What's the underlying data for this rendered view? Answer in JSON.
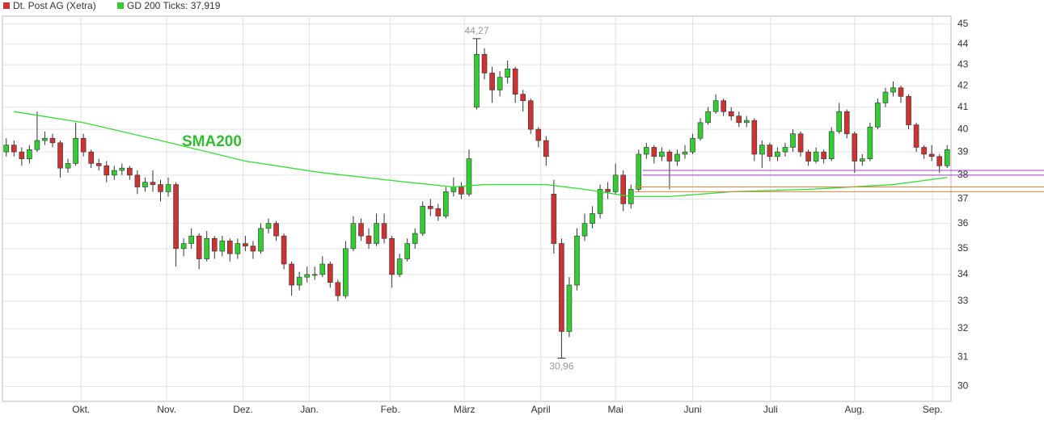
{
  "chart_data": {
    "type": "candlestick",
    "legend": [
      {
        "label": "Dt. Post AG (Xetra)",
        "color": "#cc3333"
      },
      {
        "label": "GD 200 Ticks: 37,919",
        "color": "#33cc33"
      }
    ],
    "annotation": "SMA200",
    "log_scale": true,
    "grid": true,
    "ylim": [
      29.5,
      45.4
    ],
    "yticks": [
      30,
      31,
      32,
      33,
      34,
      35,
      36,
      37,
      38,
      39,
      40,
      41,
      42,
      43,
      44,
      45
    ],
    "xlim": [
      0,
      123
    ],
    "xticks": [
      {
        "value": 10.2,
        "label": "Okt."
      },
      {
        "value": 21.3,
        "label": "Nov."
      },
      {
        "value": 31.2,
        "label": "Dez."
      },
      {
        "value": 39.8,
        "label": "Jan."
      },
      {
        "value": 50.3,
        "label": "Feb."
      },
      {
        "value": 59.9,
        "label": "März"
      },
      {
        "value": 69.8,
        "label": "April"
      },
      {
        "value": 79.5,
        "label": "Mai"
      },
      {
        "value": 89.5,
        "label": "Juni"
      },
      {
        "value": 99.6,
        "label": "Juli"
      },
      {
        "value": 110.5,
        "label": "Aug."
      },
      {
        "value": 120.6,
        "label": "Sep."
      }
    ],
    "up_color": "#33cc33",
    "down_color": "#cc3333",
    "ohlc": [
      [
        39.0,
        39.6,
        38.8,
        39.3
      ],
      [
        39.3,
        39.5,
        38.8,
        39.0
      ],
      [
        39.0,
        39.2,
        38.4,
        38.7
      ],
      [
        38.7,
        39.3,
        38.5,
        39.1
      ],
      [
        39.1,
        40.8,
        39.0,
        39.5
      ],
      [
        39.5,
        39.9,
        39.3,
        39.6
      ],
      [
        39.6,
        39.8,
        39.2,
        39.4
      ],
      [
        39.4,
        39.5,
        37.9,
        38.3
      ],
      [
        38.3,
        38.7,
        38.1,
        38.5
      ],
      [
        38.5,
        40.3,
        38.4,
        39.6
      ],
      [
        39.6,
        39.8,
        38.8,
        39.0
      ],
      [
        39.0,
        39.1,
        38.3,
        38.5
      ],
      [
        38.5,
        38.7,
        38.2,
        38.4
      ],
      [
        38.4,
        38.6,
        37.7,
        38.0
      ],
      [
        38.0,
        38.4,
        37.8,
        38.2
      ],
      [
        38.2,
        38.5,
        38.0,
        38.3
      ],
      [
        38.3,
        38.4,
        37.8,
        38.0
      ],
      [
        38.0,
        38.2,
        37.2,
        37.5
      ],
      [
        37.5,
        37.9,
        37.3,
        37.7
      ],
      [
        37.7,
        38.2,
        37.3,
        37.6
      ],
      [
        37.6,
        37.8,
        36.9,
        37.3
      ],
      [
        37.3,
        37.9,
        37.1,
        37.6
      ],
      [
        37.6,
        37.7,
        34.3,
        35.0
      ],
      [
        35.0,
        35.4,
        34.7,
        35.2
      ],
      [
        35.2,
        35.8,
        35.0,
        35.5
      ],
      [
        35.5,
        35.6,
        34.2,
        34.6
      ],
      [
        34.6,
        35.7,
        34.5,
        35.4
      ],
      [
        35.4,
        35.5,
        34.6,
        34.9
      ],
      [
        34.9,
        35.5,
        34.7,
        35.3
      ],
      [
        35.3,
        35.4,
        34.5,
        34.8
      ],
      [
        34.8,
        35.4,
        34.6,
        35.2
      ],
      [
        35.2,
        35.5,
        34.9,
        35.1
      ],
      [
        35.1,
        35.3,
        34.6,
        34.9
      ],
      [
        34.9,
        36.0,
        34.8,
        35.8
      ],
      [
        35.8,
        36.2,
        35.6,
        36.0
      ],
      [
        36.0,
        36.1,
        35.3,
        35.5
      ],
      [
        35.5,
        35.6,
        34.2,
        34.4
      ],
      [
        34.4,
        34.5,
        33.2,
        33.6
      ],
      [
        33.6,
        34.1,
        33.4,
        33.9
      ],
      [
        33.9,
        34.3,
        33.7,
        34.0
      ],
      [
        34.0,
        34.3,
        33.8,
        34.0
      ],
      [
        34.0,
        34.7,
        33.9,
        34.4
      ],
      [
        34.4,
        34.5,
        33.5,
        33.7
      ],
      [
        33.7,
        33.8,
        33.0,
        33.2
      ],
      [
        33.2,
        35.3,
        33.1,
        35.0
      ],
      [
        35.0,
        36.3,
        34.9,
        36.0
      ],
      [
        36.0,
        36.2,
        35.3,
        35.5
      ],
      [
        35.5,
        35.8,
        35.0,
        35.2
      ],
      [
        35.2,
        36.4,
        35.1,
        36.0
      ],
      [
        36.0,
        36.4,
        35.2,
        35.4
      ],
      [
        35.4,
        35.5,
        33.5,
        34.0
      ],
      [
        34.0,
        34.8,
        33.9,
        34.6
      ],
      [
        34.6,
        35.4,
        34.5,
        35.2
      ],
      [
        35.2,
        35.8,
        35.0,
        35.6
      ],
      [
        35.6,
        36.9,
        35.5,
        36.7
      ],
      [
        36.7,
        37.0,
        36.3,
        36.6
      ],
      [
        36.6,
        36.8,
        36.1,
        36.3
      ],
      [
        36.3,
        37.5,
        36.2,
        37.3
      ],
      [
        37.3,
        37.9,
        37.1,
        37.5
      ],
      [
        37.5,
        37.7,
        37.0,
        37.2
      ],
      [
        37.2,
        39.1,
        37.1,
        38.7
      ],
      [
        41.0,
        44.27,
        40.9,
        43.5
      ],
      [
        43.5,
        43.8,
        42.3,
        42.6
      ],
      [
        42.6,
        42.9,
        41.2,
        41.8
      ],
      [
        41.8,
        42.7,
        41.5,
        42.4
      ],
      [
        42.4,
        43.2,
        42.1,
        42.8
      ],
      [
        42.8,
        42.9,
        41.2,
        41.6
      ],
      [
        41.6,
        41.8,
        40.8,
        41.3
      ],
      [
        41.3,
        41.4,
        39.8,
        40.0
      ],
      [
        40.0,
        40.1,
        39.2,
        39.5
      ],
      [
        39.5,
        39.7,
        38.4,
        38.8
      ],
      [
        37.2,
        37.8,
        34.8,
        35.2
      ],
      [
        35.2,
        35.4,
        30.96,
        31.9
      ],
      [
        31.9,
        33.9,
        31.7,
        33.6
      ],
      [
        33.6,
        35.8,
        33.4,
        35.5
      ],
      [
        35.5,
        36.4,
        35.3,
        36.0
      ],
      [
        36.0,
        36.7,
        35.8,
        36.4
      ],
      [
        36.4,
        37.6,
        36.2,
        37.4
      ],
      [
        37.4,
        37.7,
        37.0,
        37.3
      ],
      [
        37.3,
        38.5,
        37.2,
        38.0
      ],
      [
        38.0,
        38.2,
        36.5,
        36.8
      ],
      [
        36.8,
        37.6,
        36.6,
        37.4
      ],
      [
        37.4,
        39.1,
        37.3,
        38.9
      ],
      [
        38.9,
        39.4,
        38.7,
        39.2
      ],
      [
        39.2,
        39.3,
        38.5,
        38.8
      ],
      [
        38.8,
        39.2,
        38.6,
        39.0
      ],
      [
        39.0,
        39.1,
        37.4,
        38.6
      ],
      [
        38.6,
        39.1,
        38.4,
        38.9
      ],
      [
        38.9,
        39.3,
        38.7,
        39.0
      ],
      [
        39.0,
        39.8,
        38.9,
        39.6
      ],
      [
        39.6,
        40.5,
        39.5,
        40.3
      ],
      [
        40.3,
        41.0,
        40.2,
        40.8
      ],
      [
        40.8,
        41.6,
        40.7,
        41.3
      ],
      [
        41.3,
        41.4,
        40.6,
        40.8
      ],
      [
        40.8,
        41.0,
        40.4,
        40.6
      ],
      [
        40.6,
        40.8,
        40.1,
        40.3
      ],
      [
        40.3,
        40.6,
        40.1,
        40.4
      ],
      [
        40.4,
        40.5,
        38.6,
        38.9
      ],
      [
        38.9,
        39.5,
        38.3,
        39.3
      ],
      [
        39.3,
        39.4,
        38.6,
        38.8
      ],
      [
        38.8,
        39.2,
        38.6,
        39.0
      ],
      [
        39.0,
        39.4,
        38.8,
        39.2
      ],
      [
        39.2,
        40.0,
        39.0,
        39.8
      ],
      [
        39.8,
        39.9,
        38.8,
        39.0
      ],
      [
        39.0,
        39.1,
        38.4,
        38.6
      ],
      [
        38.6,
        39.2,
        38.5,
        39.0
      ],
      [
        39.0,
        39.1,
        38.5,
        38.7
      ],
      [
        38.7,
        40.1,
        38.6,
        39.9
      ],
      [
        39.9,
        41.2,
        39.8,
        40.8
      ],
      [
        40.8,
        40.9,
        39.6,
        39.8
      ],
      [
        39.8,
        39.9,
        38.1,
        38.6
      ],
      [
        38.6,
        38.9,
        38.4,
        38.7
      ],
      [
        38.7,
        40.3,
        38.6,
        40.1
      ],
      [
        40.1,
        41.4,
        40.0,
        41.2
      ],
      [
        41.2,
        41.9,
        41.0,
        41.7
      ],
      [
        41.7,
        42.2,
        41.5,
        41.9
      ],
      [
        41.9,
        42.0,
        41.2,
        41.5
      ],
      [
        41.5,
        41.6,
        40.0,
        40.2
      ],
      [
        40.2,
        40.3,
        39.0,
        39.2
      ],
      [
        39.2,
        39.3,
        38.7,
        38.9
      ],
      [
        38.9,
        39.3,
        38.6,
        38.8
      ],
      [
        38.8,
        38.9,
        38.1,
        38.4
      ],
      [
        38.4,
        39.3,
        38.3,
        39.1
      ]
    ],
    "sma": {
      "color": "#33dd33",
      "x": [
        1,
        10,
        20,
        31,
        41,
        52,
        58,
        62,
        70,
        75,
        81,
        86,
        94,
        104,
        115,
        122
      ],
      "values": [
        40.8,
        40.3,
        39.5,
        38.6,
        38.1,
        37.7,
        37.5,
        37.6,
        37.6,
        37.4,
        37.1,
        37.1,
        37.3,
        37.4,
        37.6,
        37.9
      ]
    },
    "extremes": [
      {
        "x": 61,
        "value": 44.27,
        "label": "44,27"
      },
      {
        "x": 72,
        "value": 30.96,
        "label": "30,96"
      }
    ],
    "hlines": [
      {
        "x_start": 83,
        "value": 38.2,
        "color": "#a040c0"
      },
      {
        "x_start": 83,
        "value": 38.0,
        "color": "#a040c0"
      },
      {
        "x_start": 82,
        "value": 37.5,
        "color": "#e08040"
      },
      {
        "x_start": 82,
        "value": 37.3,
        "color": "#e08040"
      }
    ]
  }
}
